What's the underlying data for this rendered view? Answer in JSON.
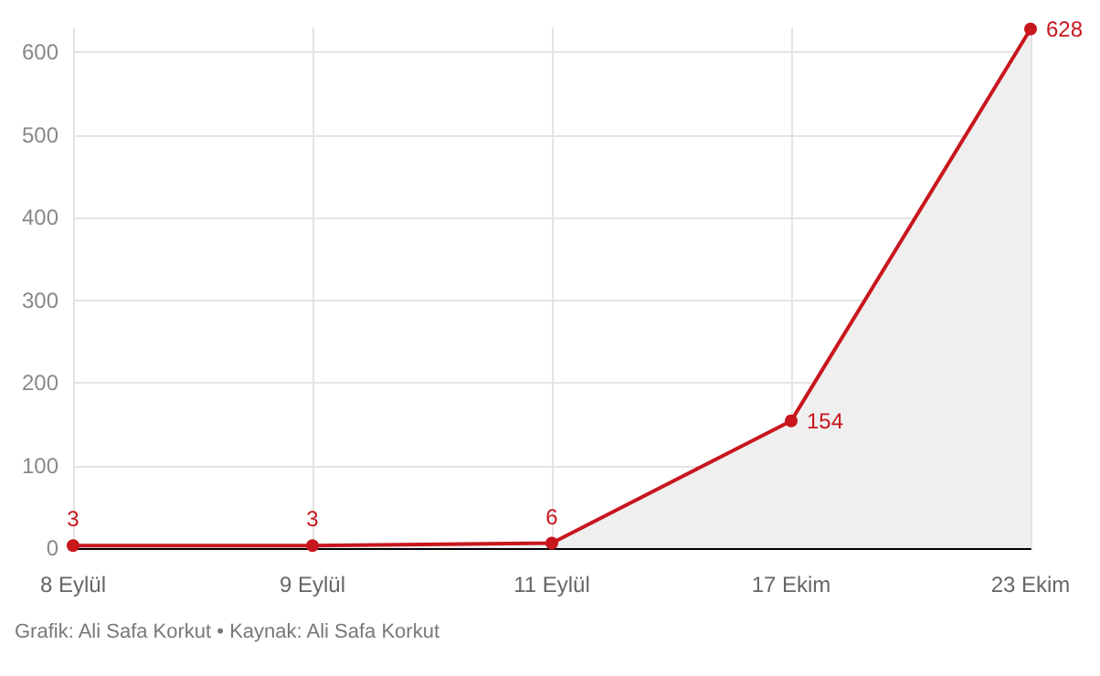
{
  "chart_data": {
    "type": "area",
    "categories": [
      "8 Eylül",
      "9 Eylül",
      "11 Eylül",
      "17 Ekim",
      "23 Ekim"
    ],
    "series": [
      {
        "color": "#c8161d",
        "values": [
          3,
          3,
          6,
          154,
          628
        ]
      }
    ],
    "ylim": [
      0,
      630
    ],
    "yticks": [
      0,
      100,
      200,
      300,
      400,
      500,
      600
    ],
    "grid": true,
    "marker": "circle",
    "data_labels": true,
    "annotations": [
      "Grafik: Ali Safa Korkut • Kaynak: Ali Safa Korkut"
    ]
  }
}
